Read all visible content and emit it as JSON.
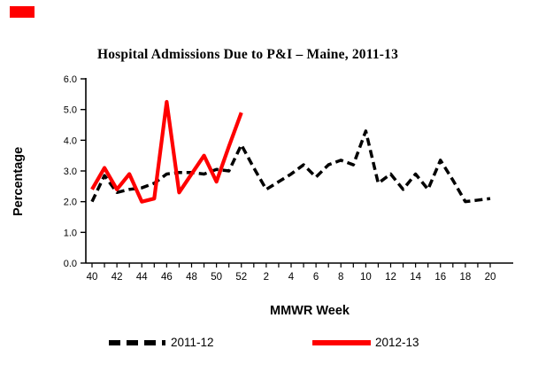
{
  "decor": {
    "accent_mark_color": "#ff0000"
  },
  "chart_data": {
    "type": "line",
    "title": "Hospital Admissions Due to P&I – Maine, 2011-13",
    "xlabel": "MMWR Week",
    "ylabel": "Percentage",
    "ylim": [
      0.0,
      6.0
    ],
    "ytick_step": 1.0,
    "ytick_labels": [
      "0.0",
      "1.0",
      "2.0",
      "3.0",
      "4.0",
      "5.0",
      "6.0"
    ],
    "x_categories": [
      40,
      41,
      42,
      43,
      44,
      45,
      46,
      47,
      48,
      49,
      50,
      51,
      52,
      1,
      2,
      3,
      4,
      5,
      6,
      7,
      8,
      9,
      10,
      11,
      12,
      13,
      14,
      15,
      16,
      17,
      18,
      19,
      20
    ],
    "xtick_labels": [
      "40",
      "42",
      "44",
      "46",
      "48",
      "50",
      "52",
      "2",
      "4",
      "6",
      "8",
      "10",
      "12",
      "14",
      "16",
      "18",
      "20"
    ],
    "grid": false,
    "legend_position": "bottom",
    "series": [
      {
        "name": "2011-12",
        "color": "#000000",
        "style": "dashed",
        "values": [
          2.0,
          2.85,
          2.3,
          2.4,
          2.45,
          2.6,
          2.9,
          2.95,
          2.95,
          2.9,
          3.05,
          3.0,
          3.85,
          3.1,
          2.4,
          2.65,
          2.9,
          3.2,
          2.8,
          3.2,
          3.35,
          3.2,
          4.3,
          2.6,
          2.9,
          2.4,
          2.9,
          2.4,
          3.35,
          2.7,
          2.0,
          2.05,
          2.1
        ]
      },
      {
        "name": "2012-13",
        "color": "#ff0000",
        "style": "solid",
        "values": [
          2.4,
          3.1,
          2.4,
          2.9,
          2.0,
          2.1,
          5.25,
          2.3,
          2.9,
          3.5,
          2.65,
          3.8,
          4.9,
          null,
          null,
          null,
          null,
          null,
          null,
          null,
          null,
          null,
          null,
          null,
          null,
          null,
          null,
          null,
          null,
          null,
          null,
          null,
          null
        ]
      }
    ]
  }
}
